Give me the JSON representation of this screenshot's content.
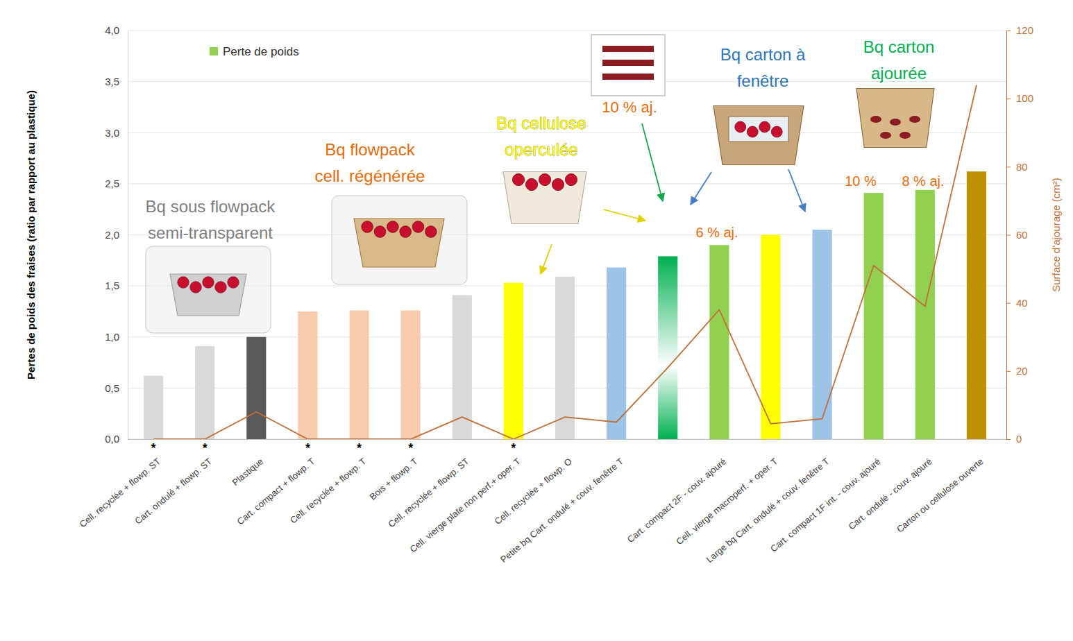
{
  "chart_data": {
    "type": "bar",
    "categories": [
      "Cell. recyclée + flowp. ST",
      "Cart. ondulé + flowp. ST",
      "Plastique",
      "Cart. compact + flowp. T",
      "Cell. recyclée + flowp. T",
      "Bois + flowp. T",
      "Cell. recyclée + flowp. ST",
      "Cell. vierge plate non perf.+ oper. T",
      "Cell. recyclée + flowp. O",
      "Petite bq Cart. ondulé + couv. fenêtre T",
      null,
      "Cart. compact 2F - couv. ajouré",
      "Cell. vierge macroperf. + oper. T",
      "Large bq Cart. ondulé + couv. fenêtre T",
      "Cart. compact 1F int. - couv. ajouré",
      "Cart. ondulé - couv. ajouré",
      "Carton ou cellulose ouverte"
    ],
    "series": [
      {
        "name": "Perte de poids",
        "type": "bar",
        "color": "#92d050",
        "colors": [
          "#d9d9d9",
          "#d9d9d9",
          "#595959",
          "#f8cbad",
          "#f8cbad",
          "#f8cbad",
          "#d9d9d9",
          "#ffff00",
          "#d9d9d9",
          "#9dc3e6",
          "#00b050",
          "#92d050",
          "#ffff00",
          "#9dc3e6",
          "#92d050",
          "#92d050",
          "#bf9000"
        ],
        "values": [
          0.62,
          0.91,
          1.0,
          1.25,
          1.26,
          1.26,
          1.41,
          1.53,
          1.59,
          1.68,
          1.79,
          1.9,
          2.0,
          2.05,
          2.41,
          2.44,
          2.62
        ]
      },
      {
        "type": "line",
        "axis": "y2",
        "color": "#c0703a",
        "values": [
          0,
          0,
          8,
          0,
          0,
          0,
          6.5,
          0,
          6.5,
          5,
          21,
          38,
          4.5,
          6,
          51,
          39,
          104
        ]
      }
    ],
    "y_label": "Pertes de poids des fraises (ratio par rapport au plastique)",
    "y2_label": "Surface d'ajourage (cm²)",
    "ylim": [
      0,
      4
    ],
    "yticks": [
      {
        "value": 0,
        "label": "0,0"
      },
      {
        "value": 0.5,
        "label": "0,5"
      },
      {
        "value": 1,
        "label": "1,0"
      },
      {
        "value": 1.5,
        "label": "1,5"
      },
      {
        "value": 2,
        "label": "2,0"
      },
      {
        "value": 2.5,
        "label": "2,5"
      },
      {
        "value": 3,
        "label": "3,0"
      },
      {
        "value": 3.5,
        "label": "3,5"
      },
      {
        "value": 4,
        "label": "4,0"
      }
    ],
    "y2lim": [
      0,
      120
    ],
    "y2ticks": [
      0,
      20,
      40,
      60,
      80,
      100,
      120
    ],
    "grid": true,
    "legend": "top-left",
    "annotations": [
      {
        "text": [
          "Bq sous flowpack",
          "semi-transparent"
        ],
        "color": "#7f7f7f"
      },
      {
        "text": [
          "Bq flowpack",
          "cell. régénérée"
        ],
        "color": "#e46c0a"
      },
      {
        "text": [
          "Bq cellulose",
          "operculée"
        ],
        "color": "#ffff00"
      },
      {
        "text": [
          "10 % aj."
        ],
        "color": "#e46c0a"
      },
      {
        "text": [
          "Bq carton à",
          "fenêtre"
        ],
        "color": "#2e75b6"
      },
      {
        "text": [
          "Bq carton",
          "ajourée"
        ],
        "color": "#00b050"
      },
      {
        "text": [
          "6 % aj."
        ],
        "color": "#e46c0a"
      },
      {
        "text": [
          "10 %"
        ],
        "color": "#e46c0a"
      },
      {
        "text": [
          "8 % aj."
        ],
        "color": "#e46c0a"
      },
      {
        "text": [
          "*"
        ],
        "category": 0
      },
      {
        "text": [
          "*"
        ],
        "category": 1
      },
      {
        "text": [
          "*"
        ],
        "category": 3
      },
      {
        "text": [
          "*"
        ],
        "category": 4
      },
      {
        "text": [
          "*"
        ],
        "category": 5
      },
      {
        "text": [
          "*"
        ],
        "category": 7
      }
    ]
  }
}
